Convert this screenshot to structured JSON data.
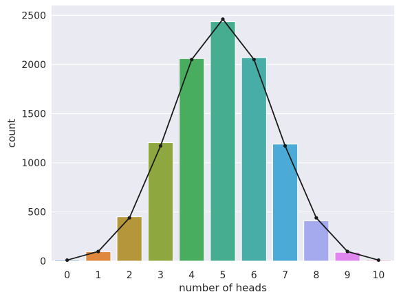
{
  "chart_data": {
    "type": "bar",
    "title": "",
    "xlabel": "number of heads",
    "ylabel": "count",
    "categories": [
      "0",
      "1",
      "2",
      "3",
      "4",
      "5",
      "6",
      "7",
      "8",
      "9",
      "10"
    ],
    "series": [
      {
        "type": "bar",
        "values": [
          10,
          95,
          450,
          1205,
          2060,
          2435,
          2070,
          1190,
          410,
          90,
          10
        ]
      },
      {
        "type": "line",
        "color": "#1a1a1a",
        "marker": "dot",
        "values": [
          10,
          98,
          440,
          1172,
          2051,
          2461,
          2051,
          1172,
          440,
          98,
          10
        ]
      }
    ],
    "bar_colors": [
      "#3b7bbf",
      "#e0893e",
      "#b6963a",
      "#8ea73e",
      "#48ad5f",
      "#47ad91",
      "#48ada7",
      "#4cabd6",
      "#a5aaee",
      "#df87ef",
      "#f185c1"
    ],
    "ylim": [
      0,
      2600
    ],
    "yticks": [
      0,
      500,
      1000,
      1500,
      2000,
      2500
    ],
    "grid": true,
    "background_color": "#eaeaf2",
    "grid_color": "#ffffff"
  }
}
